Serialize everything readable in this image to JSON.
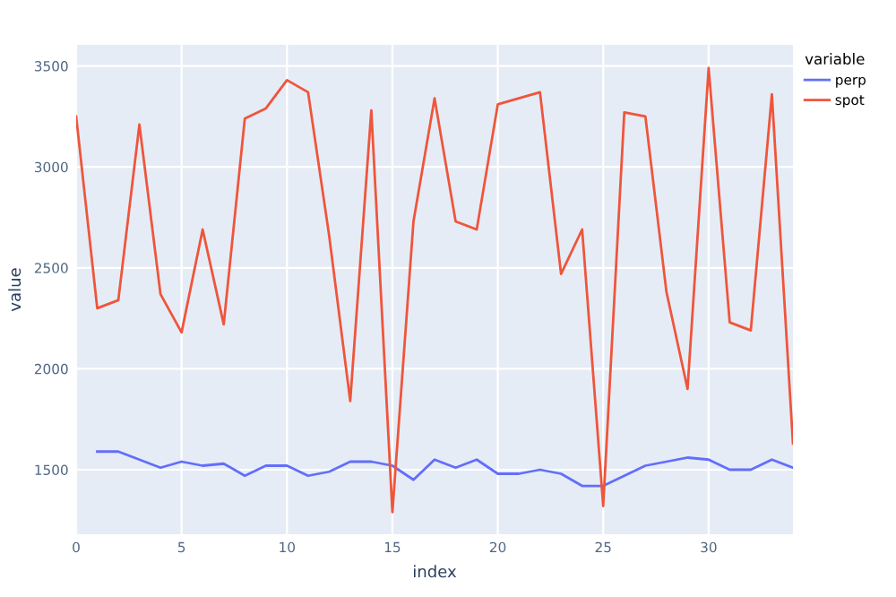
{
  "chart_data": {
    "type": "line",
    "xlabel": "index",
    "ylabel": "value",
    "legend_title": "variable",
    "x": [
      0,
      1,
      2,
      3,
      4,
      5,
      6,
      7,
      8,
      9,
      10,
      11,
      12,
      13,
      14,
      15,
      16,
      17,
      18,
      19,
      20,
      21,
      22,
      23,
      24,
      25,
      26,
      27,
      28,
      29,
      30,
      31,
      32,
      33,
      34
    ],
    "series": [
      {
        "name": "perp",
        "color": "#636efa",
        "values": [
          null,
          1590,
          1590,
          1550,
          1510,
          1540,
          1520,
          1530,
          1470,
          1520,
          1520,
          1470,
          1490,
          1540,
          1540,
          1520,
          1450,
          1550,
          1510,
          1550,
          1480,
          1480,
          1500,
          1480,
          1420,
          1420,
          1470,
          1520,
          1540,
          1560,
          1550,
          1500,
          1500,
          1550,
          1510
        ]
      },
      {
        "name": "spot",
        "color": "#ef553b",
        "values": [
          3250,
          2300,
          2340,
          3210,
          2370,
          2180,
          2690,
          2220,
          3240,
          3290,
          3430,
          3370,
          2660,
          1840,
          3280,
          1290,
          2730,
          3340,
          2730,
          2690,
          3310,
          3340,
          3370,
          2470,
          2690,
          1320,
          3270,
          3250,
          2380,
          1900,
          3490,
          2230,
          2190,
          3360,
          1630
        ]
      }
    ],
    "xlim": [
      0,
      34
    ],
    "ylim": [
      1180,
      3605
    ],
    "xticks": [
      0,
      5,
      10,
      15,
      20,
      25,
      30
    ],
    "yticks": [
      1500,
      2000,
      2500,
      3000,
      3500
    ],
    "grid": true,
    "legend": "top right",
    "marker": "none",
    "line_style": "solid"
  }
}
